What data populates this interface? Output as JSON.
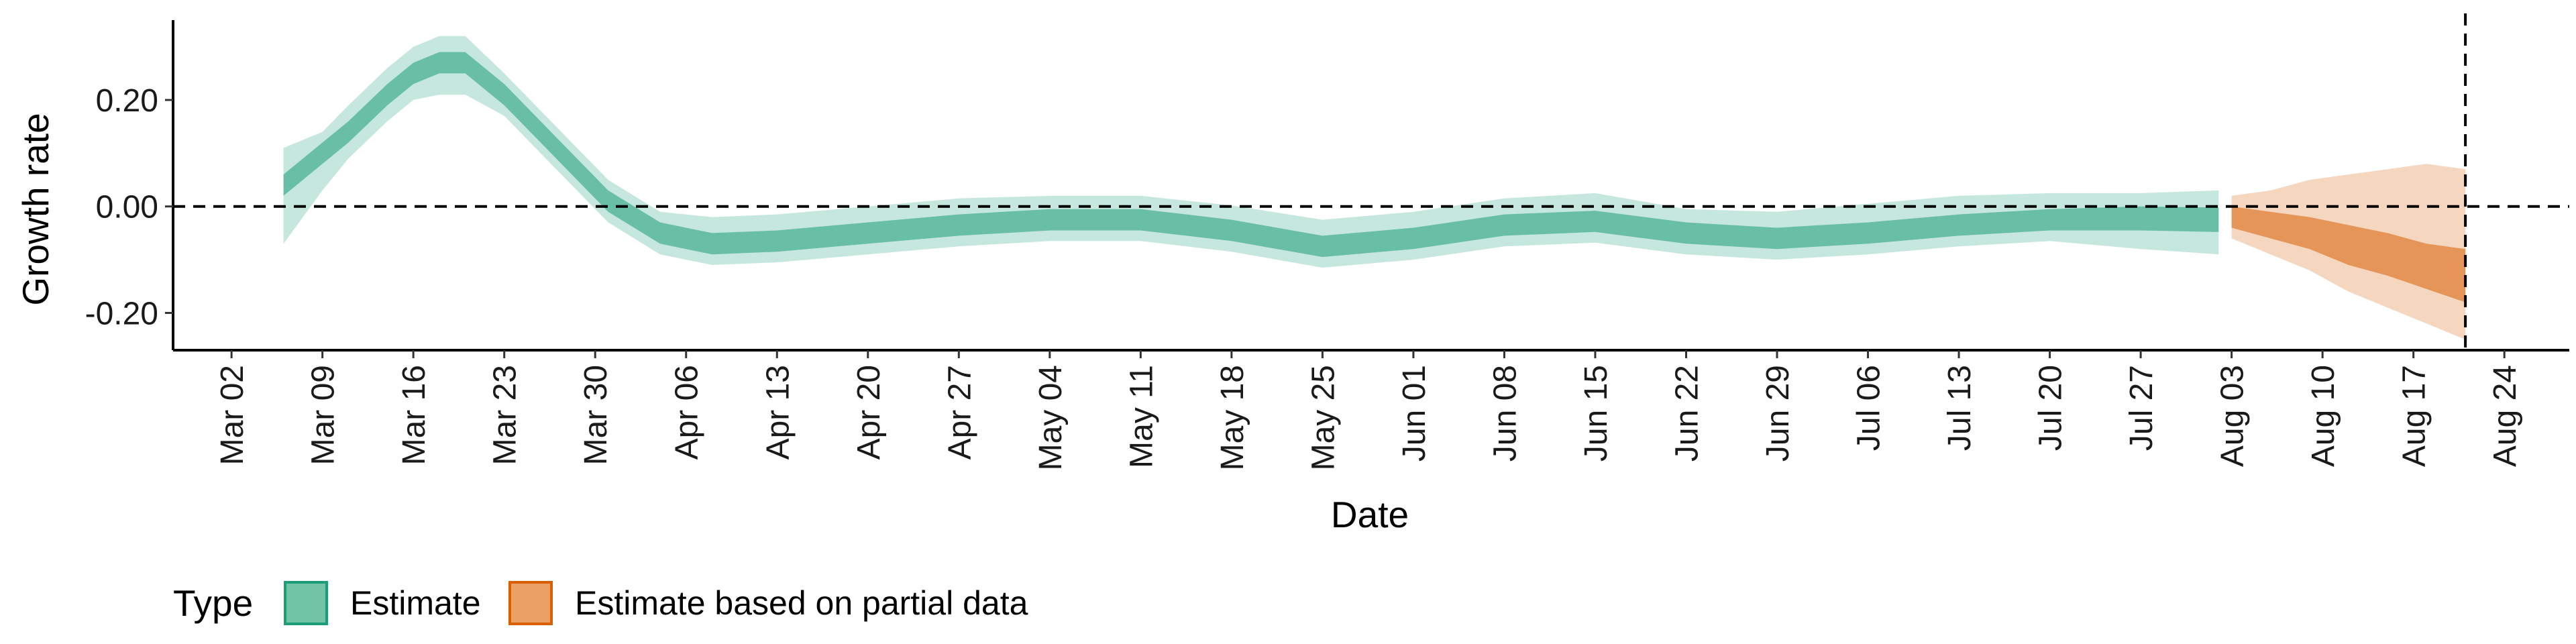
{
  "chart_data": {
    "type": "area",
    "title": "",
    "xlabel": "Date",
    "ylabel": "Growth rate",
    "ylim": [
      -0.27,
      0.35
    ],
    "y_ticks": [
      {
        "value": 0.2,
        "label": "0.20"
      },
      {
        "value": 0.0,
        "label": "0.00"
      },
      {
        "value": -0.2,
        "label": "-0.20"
      }
    ],
    "x_ticks": [
      {
        "day": 1,
        "label": "Mar 02"
      },
      {
        "day": 8,
        "label": "Mar 09"
      },
      {
        "day": 15,
        "label": "Mar 16"
      },
      {
        "day": 22,
        "label": "Mar 23"
      },
      {
        "day": 29,
        "label": "Mar 30"
      },
      {
        "day": 36,
        "label": "Apr 06"
      },
      {
        "day": 43,
        "label": "Apr 13"
      },
      {
        "day": 50,
        "label": "Apr 20"
      },
      {
        "day": 57,
        "label": "Apr 27"
      },
      {
        "day": 64,
        "label": "May 04"
      },
      {
        "day": 71,
        "label": "May 11"
      },
      {
        "day": 78,
        "label": "May 18"
      },
      {
        "day": 85,
        "label": "May 25"
      },
      {
        "day": 92,
        "label": "Jun 01"
      },
      {
        "day": 99,
        "label": "Jun 08"
      },
      {
        "day": 106,
        "label": "Jun 15"
      },
      {
        "day": 113,
        "label": "Jun 22"
      },
      {
        "day": 120,
        "label": "Jun 29"
      },
      {
        "day": 127,
        "label": "Jul 06"
      },
      {
        "day": 134,
        "label": "Jul 13"
      },
      {
        "day": 141,
        "label": "Jul 20"
      },
      {
        "day": 148,
        "label": "Jul 27"
      },
      {
        "day": 155,
        "label": "Aug 03"
      },
      {
        "day": 162,
        "label": "Aug 10"
      },
      {
        "day": 169,
        "label": "Aug 17"
      },
      {
        "day": 176,
        "label": "Aug 24"
      }
    ],
    "xlim": [
      -3.5,
      181
    ],
    "x_unit": "days since Mar 01",
    "hline": 0,
    "vline_day": 173,
    "series": [
      {
        "name": "Estimate",
        "color": "#1b9e77",
        "days": [
          5,
          8,
          10,
          13,
          15,
          17,
          19,
          22,
          26,
          30,
          34,
          38,
          43,
          50,
          57,
          64,
          71,
          78,
          85,
          92,
          99,
          106,
          113,
          120,
          127,
          134,
          141,
          148,
          154
        ],
        "median": [
          0.04,
          0.1,
          0.14,
          0.21,
          0.25,
          0.27,
          0.27,
          0.21,
          0.11,
          0.01,
          -0.05,
          -0.07,
          -0.065,
          -0.05,
          -0.035,
          -0.025,
          -0.025,
          -0.045,
          -0.075,
          -0.06,
          -0.035,
          -0.028,
          -0.05,
          -0.06,
          -0.05,
          -0.035,
          -0.025,
          -0.022,
          -0.025
        ],
        "inner_lo": [
          0.02,
          0.08,
          0.12,
          0.19,
          0.23,
          0.25,
          0.25,
          0.19,
          0.09,
          -0.01,
          -0.07,
          -0.09,
          -0.085,
          -0.07,
          -0.055,
          -0.045,
          -0.045,
          -0.065,
          -0.095,
          -0.08,
          -0.055,
          -0.048,
          -0.07,
          -0.08,
          -0.07,
          -0.055,
          -0.045,
          -0.045,
          -0.048
        ],
        "inner_hi": [
          0.06,
          0.12,
          0.16,
          0.23,
          0.27,
          0.29,
          0.29,
          0.23,
          0.13,
          0.03,
          -0.03,
          -0.05,
          -0.045,
          -0.03,
          -0.015,
          -0.005,
          -0.005,
          -0.025,
          -0.055,
          -0.04,
          -0.015,
          -0.008,
          -0.03,
          -0.04,
          -0.03,
          -0.015,
          -0.005,
          0.0,
          -0.002
        ],
        "outer_lo": [
          -0.07,
          0.03,
          0.09,
          0.16,
          0.2,
          0.21,
          0.21,
          0.17,
          0.07,
          -0.03,
          -0.09,
          -0.11,
          -0.105,
          -0.09,
          -0.075,
          -0.065,
          -0.065,
          -0.085,
          -0.115,
          -0.1,
          -0.075,
          -0.068,
          -0.09,
          -0.1,
          -0.09,
          -0.075,
          -0.065,
          -0.08,
          -0.09
        ],
        "outer_hi": [
          0.11,
          0.14,
          0.19,
          0.26,
          0.3,
          0.32,
          0.32,
          0.25,
          0.15,
          0.05,
          -0.01,
          -0.02,
          -0.015,
          0.0,
          0.015,
          0.02,
          0.02,
          0.002,
          -0.025,
          -0.01,
          0.015,
          0.025,
          -0.005,
          -0.01,
          0.005,
          0.02,
          0.025,
          0.025,
          0.03
        ]
      },
      {
        "name": "Estimate based on partial data",
        "color": "#d95f02",
        "days": [
          155,
          158,
          161,
          164,
          167,
          170,
          173
        ],
        "median": [
          -0.02,
          -0.035,
          -0.05,
          -0.07,
          -0.09,
          -0.11,
          -0.13
        ],
        "inner_lo": [
          -0.04,
          -0.06,
          -0.08,
          -0.11,
          -0.13,
          -0.155,
          -0.18
        ],
        "inner_hi": [
          0.0,
          -0.01,
          -0.02,
          -0.035,
          -0.05,
          -0.07,
          -0.08
        ],
        "outer_lo": [
          -0.06,
          -0.09,
          -0.12,
          -0.16,
          -0.19,
          -0.22,
          -0.25
        ],
        "outer_hi": [
          0.02,
          0.03,
          0.05,
          0.06,
          0.07,
          0.08,
          0.07
        ]
      }
    ],
    "legend": {
      "title": "Type",
      "position": "bottom-left",
      "entries": [
        {
          "label": "Estimate",
          "fill": "#71c4a6",
          "stroke": "#1b9e77"
        },
        {
          "label": "Estimate based on partial data",
          "fill": "#eba066",
          "stroke": "#d95f02"
        }
      ]
    }
  }
}
